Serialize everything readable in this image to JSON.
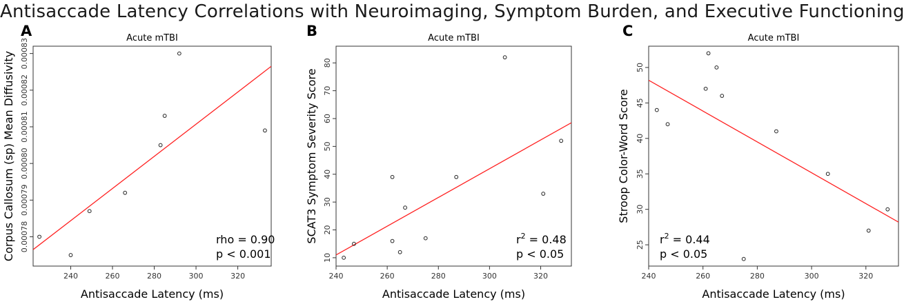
{
  "title": "Antisaccade Latency Correlations with Neuroimaging, Symptom Burden, and Executive Functioning",
  "colors": {
    "fit_line": "#ff2020",
    "points": "#222222",
    "frame": "#333333"
  },
  "chart_data": [
    {
      "panel": "A",
      "type": "scatter",
      "title": "Acute mTBI",
      "xlabel": "Antisaccade Latency (ms)",
      "ylabel": "Corpus Callosum (sp) Mean Diffusivity",
      "xlim": [
        222,
        336
      ],
      "ylim": [
        0.000772,
        0.000832
      ],
      "x_ticks": [
        240,
        260,
        280,
        300,
        320
      ],
      "y_ticks": [
        0.00078,
        0.00079,
        0.0008,
        0.00081,
        0.00082,
        0.00083
      ],
      "y_tick_labels": [
        "0.00078",
        "0.00079",
        "0.00080",
        "0.00081",
        "0.00082",
        "0.00083"
      ],
      "points": [
        [
          225,
          0.00078
        ],
        [
          240,
          0.000775
        ],
        [
          249,
          0.000787
        ],
        [
          266,
          0.000792
        ],
        [
          283,
          0.000805
        ],
        [
          285,
          0.000813
        ],
        [
          292,
          0.00083
        ],
        [
          333,
          0.000809
        ]
      ],
      "fit": [
        [
          222,
          0.0007765
        ],
        [
          336,
          0.0008265
        ]
      ],
      "stat_lines": [
        "rho = 0.90",
        "p < 0.001"
      ],
      "grid": false
    },
    {
      "panel": "B",
      "type": "scatter",
      "title": "Acute mTBI",
      "xlabel": "Antisaccade Latency (ms)",
      "ylabel": "SCAT3 Symptom Severity Score",
      "xlim": [
        240,
        332
      ],
      "ylim": [
        7,
        86
      ],
      "x_ticks": [
        240,
        260,
        280,
        300,
        320
      ],
      "y_ticks": [
        10,
        20,
        30,
        40,
        50,
        60,
        70,
        80
      ],
      "y_tick_labels": [
        "10",
        "20",
        "30",
        "40",
        "50",
        "60",
        "70",
        "80"
      ],
      "points": [
        [
          243,
          10
        ],
        [
          247,
          15
        ],
        [
          262,
          39
        ],
        [
          262,
          16
        ],
        [
          265,
          12
        ],
        [
          267,
          28
        ],
        [
          275,
          17
        ],
        [
          287,
          39
        ],
        [
          306,
          82
        ],
        [
          321,
          33
        ],
        [
          328,
          52
        ]
      ],
      "fit": [
        [
          240,
          11
        ],
        [
          332,
          58.5
        ]
      ],
      "stat_lines": [
        "r = 0.48",
        "p < 0.05"
      ],
      "stat_superscript": "2",
      "grid": false
    },
    {
      "panel": "C",
      "type": "scatter",
      "title": "Acute mTBI",
      "xlabel": "Antisaccade Latency (ms)",
      "ylabel": "Stroop Color-Word Score",
      "xlim": [
        240,
        332
      ],
      "ylim": [
        22,
        53
      ],
      "x_ticks": [
        240,
        260,
        280,
        300,
        320
      ],
      "y_ticks": [
        25,
        30,
        35,
        40,
        45,
        50
      ],
      "y_tick_labels": [
        "25",
        "30",
        "35",
        "40",
        "45",
        "50"
      ],
      "points": [
        [
          243,
          44
        ],
        [
          247,
          42
        ],
        [
          261,
          47
        ],
        [
          262,
          52
        ],
        [
          265,
          50
        ],
        [
          267,
          46
        ],
        [
          275,
          23
        ],
        [
          287,
          41
        ],
        [
          306,
          35
        ],
        [
          321,
          27
        ],
        [
          328,
          30
        ]
      ],
      "fit": [
        [
          240,
          48.2
        ],
        [
          332,
          28.2
        ]
      ],
      "stat_lines": [
        "r = 0.44",
        "p < 0.05"
      ],
      "stat_superscript": "2",
      "grid": false
    }
  ]
}
